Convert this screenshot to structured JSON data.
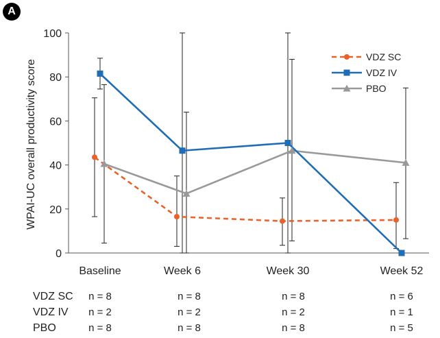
{
  "panel_label": "A",
  "chart_data": {
    "type": "line",
    "title": "",
    "ylabel": "WPAI-UC overall productivity score",
    "xlabel": "",
    "ylim": [
      0,
      100
    ],
    "yticks": [
      0,
      20,
      40,
      60,
      80,
      100
    ],
    "grid": false,
    "legend_position": "top-right",
    "categories": [
      "Baseline",
      "Week 6",
      "Week 30",
      "Week 52"
    ],
    "series": [
      {
        "name": "VDZ SC",
        "color": "#e8622a",
        "line_style": "dashed",
        "marker": "circle",
        "values": [
          43.5,
          16.5,
          14.5,
          15
        ],
        "error_low": [
          16.5,
          3,
          3.5,
          2
        ],
        "error_high": [
          70.5,
          35,
          25,
          32
        ],
        "n": [
          "n = 8",
          "n = 8",
          "n = 8",
          "n = 6"
        ]
      },
      {
        "name": "VDZ IV",
        "color": "#1f6db5",
        "line_style": "solid",
        "marker": "square",
        "values": [
          81.5,
          46.5,
          50,
          0
        ],
        "error_low": [
          74.5,
          0,
          0,
          0
        ],
        "error_high": [
          88.5,
          100,
          100,
          0
        ],
        "n": [
          "n = 2",
          "n = 2",
          "n = 2",
          "n = 1"
        ]
      },
      {
        "name": "PBO",
        "color": "#999999",
        "line_style": "solid",
        "marker": "triangle",
        "values": [
          40.5,
          27,
          46.5,
          41
        ],
        "error_low": [
          4.5,
          0,
          5.5,
          6.5
        ],
        "error_high": [
          76.5,
          64,
          88,
          75
        ],
        "n": [
          "n = 8",
          "n = 8",
          "n = 8",
          "n = 5"
        ]
      }
    ]
  }
}
